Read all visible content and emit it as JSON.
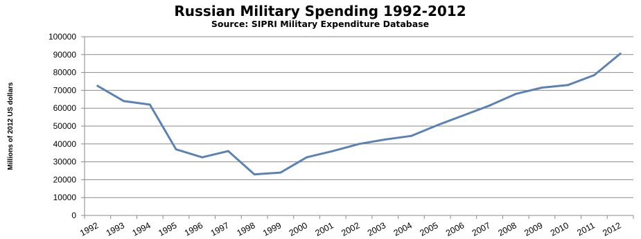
{
  "chart_data": {
    "type": "line",
    "title": "Russian Military Spending 1992-2012",
    "subtitle": "Source: SIPRI Military Expenditure Database",
    "xlabel": "",
    "ylabel": "Millions of 2012 US dollars",
    "ylim": [
      0,
      100000
    ],
    "yticks": [
      "0",
      "10000",
      "20000",
      "30000",
      "40000",
      "50000",
      "60000",
      "70000",
      "80000",
      "90000",
      "100000"
    ],
    "categories": [
      "1992",
      "1993",
      "1994",
      "1995",
      "1996",
      "1997",
      "1998",
      "1999",
      "2000",
      "2001",
      "2002",
      "2003",
      "2004",
      "2005",
      "2006",
      "2007",
      "2008",
      "2009",
      "2010",
      "2011",
      "2012"
    ],
    "series": [
      {
        "values": [
          72500,
          64000,
          62000,
          37000,
          32500,
          36000,
          23000,
          24000,
          32500,
          36000,
          40000,
          42500,
          44500,
          50500,
          56000,
          61500,
          68000,
          71500,
          73000,
          78500,
          90500
        ],
        "color": "#5b82b3"
      }
    ],
    "grid": true,
    "legend": "none"
  }
}
